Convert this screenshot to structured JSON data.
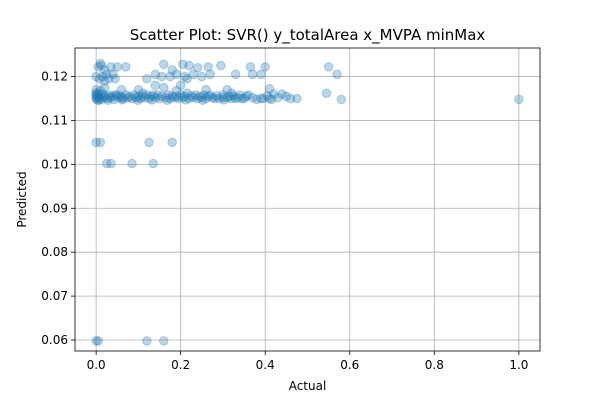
{
  "chart_data": {
    "type": "scatter",
    "title": "Scatter Plot: SVR() y_totalArea x_MVPA minMax",
    "xlabel": "Actual",
    "ylabel": "Predicted",
    "xlim": [
      -0.05,
      1.05
    ],
    "ylim": [
      0.0575,
      0.1265
    ],
    "grid": true,
    "xticks": [
      0.0,
      0.2,
      0.4,
      0.6,
      0.8,
      1.0
    ],
    "xtick_labels": [
      "0.0",
      "0.2",
      "0.4",
      "0.6",
      "0.8",
      "1.0"
    ],
    "yticks": [
      0.06,
      0.07,
      0.08,
      0.09,
      0.1,
      0.11,
      0.12
    ],
    "ytick_labels": [
      "0.06",
      "0.07",
      "0.08",
      "0.09",
      "0.10",
      "0.11",
      "0.12"
    ],
    "marker_color": "#1f77b4",
    "marker_alpha": 0.3,
    "points": [
      [
        0.01,
        0.123
      ],
      [
        0.012,
        0.1225
      ],
      [
        0.02,
        0.1215
      ],
      [
        0.025,
        0.1205
      ],
      [
        0.03,
        0.1195
      ],
      [
        0.015,
        0.12
      ],
      [
        0.008,
        0.1195
      ],
      [
        0.04,
        0.1205
      ],
      [
        0.045,
        0.1195
      ],
      [
        0.05,
        0.1222
      ],
      [
        0.035,
        0.1222
      ],
      [
        0.07,
        0.1222
      ],
      [
        0.12,
        0.1195
      ],
      [
        0.14,
        0.1205
      ],
      [
        0.155,
        0.12
      ],
      [
        0.16,
        0.1228
      ],
      [
        0.175,
        0.12
      ],
      [
        0.18,
        0.1215
      ],
      [
        0.19,
        0.1205
      ],
      [
        0.205,
        0.1228
      ],
      [
        0.21,
        0.12
      ],
      [
        0.215,
        0.1195
      ],
      [
        0.22,
        0.1225
      ],
      [
        0.23,
        0.1205
      ],
      [
        0.24,
        0.122
      ],
      [
        0.25,
        0.12
      ],
      [
        0.265,
        0.1222
      ],
      [
        0.27,
        0.1205
      ],
      [
        0.295,
        0.1225
      ],
      [
        0.33,
        0.1205
      ],
      [
        0.365,
        0.1222
      ],
      [
        0.37,
        0.1205
      ],
      [
        0.39,
        0.1205
      ],
      [
        0.4,
        0.1222
      ],
      [
        0.55,
        0.1222
      ],
      [
        0.57,
        0.1205
      ],
      [
        0.0,
        0.12
      ],
      [
        0.005,
        0.1222
      ],
      [
        0.02,
        0.119
      ],
      [
        0.0,
        0.105
      ],
      [
        0.01,
        0.105
      ],
      [
        0.125,
        0.105
      ],
      [
        0.18,
        0.105
      ],
      [
        0.025,
        0.1002
      ],
      [
        0.035,
        0.1002
      ],
      [
        0.085,
        0.1002
      ],
      [
        0.135,
        0.1002
      ],
      [
        0.0,
        0.0598
      ],
      [
        0.005,
        0.0598
      ],
      [
        0.12,
        0.0598
      ],
      [
        0.16,
        0.0598
      ],
      [
        0.0,
        0.117
      ],
      [
        0.02,
        0.1175
      ],
      [
        0.06,
        0.117
      ],
      [
        0.1,
        0.117
      ],
      [
        0.14,
        0.118
      ],
      [
        0.16,
        0.1175
      ],
      [
        0.2,
        0.118
      ],
      [
        0.26,
        0.117
      ],
      [
        0.31,
        0.117
      ],
      [
        0.41,
        0.1172
      ],
      [
        0.44,
        0.116
      ],
      [
        0.42,
        0.116
      ],
      [
        0.545,
        0.1162
      ],
      [
        0.58,
        0.1148
      ],
      [
        1.0,
        0.1148
      ],
      [
        0.38,
        0.1148
      ],
      [
        0.39,
        0.115
      ],
      [
        0.41,
        0.115
      ],
      [
        0.45,
        0.1155
      ],
      [
        0.475,
        0.115
      ],
      [
        0.28,
        0.115
      ],
      [
        0.3,
        0.1152
      ],
      [
        0.33,
        0.115
      ],
      [
        0.35,
        0.115
      ],
      [
        0.06,
        0.1152
      ],
      [
        0.0,
        0.1162
      ],
      [
        0.01,
        0.1168
      ],
      [
        0.045,
        0.1158
      ],
      [
        0.135,
        0.1158
      ],
      [
        0.215,
        0.1162
      ],
      [
        0.27,
        0.1158
      ],
      [
        0.32,
        0.1162
      ],
      [
        0.36,
        0.1158
      ],
      [
        0.11,
        0.1162
      ],
      [
        0.19,
        0.1168
      ],
      [
        0.0,
        0.1155
      ],
      [
        0.0,
        0.115
      ],
      [
        0.0,
        0.1158
      ],
      [
        0.002,
        0.1148
      ],
      [
        0.004,
        0.1162
      ],
      [
        0.006,
        0.1155
      ],
      [
        0.008,
        0.115
      ],
      [
        0.01,
        0.1158
      ],
      [
        0.012,
        0.1148
      ],
      [
        0.015,
        0.116
      ],
      [
        0.018,
        0.1152
      ],
      [
        0.022,
        0.1156
      ],
      [
        0.026,
        0.115
      ],
      [
        0.03,
        0.1158
      ],
      [
        0.034,
        0.1152
      ],
      [
        0.038,
        0.1155
      ],
      [
        0.042,
        0.1148
      ],
      [
        0.048,
        0.1158
      ],
      [
        0.052,
        0.1152
      ],
      [
        0.056,
        0.1156
      ],
      [
        0.065,
        0.115
      ],
      [
        0.07,
        0.1158
      ],
      [
        0.075,
        0.1152
      ],
      [
        0.08,
        0.1155
      ],
      [
        0.085,
        0.115
      ],
      [
        0.09,
        0.1158
      ],
      [
        0.095,
        0.1152
      ],
      [
        0.1,
        0.1155
      ],
      [
        0.105,
        0.115
      ],
      [
        0.11,
        0.1156
      ],
      [
        0.115,
        0.1152
      ],
      [
        0.12,
        0.1158
      ],
      [
        0.125,
        0.115
      ],
      [
        0.13,
        0.1155
      ],
      [
        0.14,
        0.1152
      ],
      [
        0.145,
        0.1158
      ],
      [
        0.15,
        0.115
      ],
      [
        0.155,
        0.1155
      ],
      [
        0.165,
        0.1152
      ],
      [
        0.17,
        0.1158
      ],
      [
        0.175,
        0.115
      ],
      [
        0.18,
        0.1156
      ],
      [
        0.185,
        0.1152
      ],
      [
        0.19,
        0.1155
      ],
      [
        0.195,
        0.115
      ],
      [
        0.2,
        0.1158
      ],
      [
        0.205,
        0.1152
      ],
      [
        0.21,
        0.1155
      ],
      [
        0.22,
        0.115
      ],
      [
        0.225,
        0.1156
      ],
      [
        0.23,
        0.1152
      ],
      [
        0.235,
        0.1158
      ],
      [
        0.24,
        0.115
      ],
      [
        0.245,
        0.1155
      ],
      [
        0.25,
        0.1152
      ],
      [
        0.255,
        0.1158
      ],
      [
        0.26,
        0.115
      ],
      [
        0.265,
        0.1155
      ],
      [
        0.275,
        0.1152
      ],
      [
        0.285,
        0.1156
      ],
      [
        0.29,
        0.115
      ],
      [
        0.3,
        0.1158
      ],
      [
        0.31,
        0.1152
      ],
      [
        0.315,
        0.1155
      ],
      [
        0.32,
        0.115
      ],
      [
        0.325,
        0.1156
      ],
      [
        0.335,
        0.1152
      ],
      [
        0.34,
        0.1158
      ],
      [
        0.345,
        0.115
      ],
      [
        0.355,
        0.1155
      ],
      [
        0.37,
        0.1152
      ],
      [
        0.395,
        0.115
      ],
      [
        0.405,
        0.1156
      ],
      [
        0.415,
        0.1148
      ],
      [
        0.43,
        0.1152
      ],
      [
        0.46,
        0.115
      ],
      [
        0.005,
        0.1145
      ],
      [
        0.028,
        0.1146
      ],
      [
        0.062,
        0.1147
      ],
      [
        0.098,
        0.1146
      ],
      [
        0.132,
        0.1147
      ],
      [
        0.168,
        0.1146
      ],
      [
        0.212,
        0.1147
      ],
      [
        0.252,
        0.1146
      ],
      [
        0.302,
        0.1147
      ]
    ]
  }
}
